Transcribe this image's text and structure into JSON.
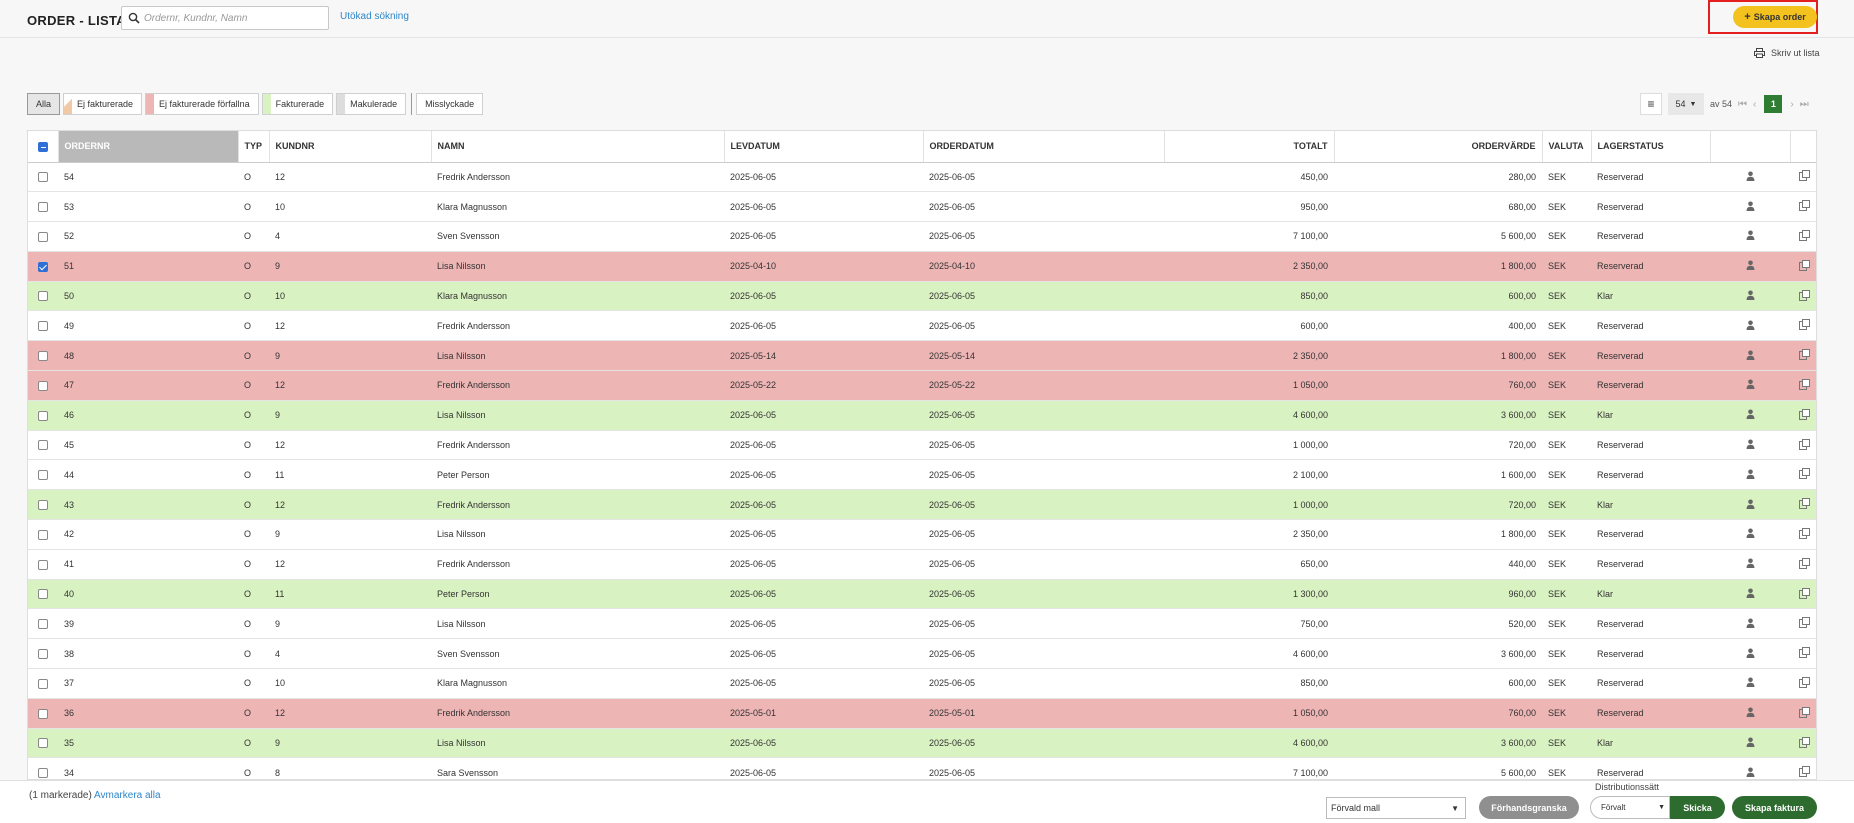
{
  "header": {
    "title": "ORDER - LISTA",
    "search_placeholder": "Ordernr, Kundnr, Namn",
    "advanced_search": "Utökad sökning",
    "create_order": "Skapa order",
    "print_list": "Skriv ut lista"
  },
  "filters": [
    {
      "label": "Alla",
      "active": true,
      "color": ""
    },
    {
      "label": "Ej fakturerade",
      "active": false,
      "color": "#f2c9a6"
    },
    {
      "label": "Ej fakturerade förfallna",
      "active": false,
      "color": "#eeb5b5"
    },
    {
      "label": "Fakturerade",
      "active": false,
      "color": "#d9f2c2"
    },
    {
      "label": "Makulerade",
      "active": false,
      "color": "#dddddd"
    },
    {
      "label": "Misslyckade",
      "active": false,
      "color": ""
    }
  ],
  "pager": {
    "per_page": "54",
    "of_label": "av 54",
    "current_page": "1"
  },
  "columns": [
    "ORDERNR",
    "TYP",
    "KUNDNR",
    "NAMN",
    "LEVDATUM",
    "ORDERDATUM",
    "TOTALT",
    "ORDERVÄRDE",
    "VALUTA",
    "LAGERSTATUS"
  ],
  "rows": [
    {
      "ordernr": "54",
      "typ": "O",
      "kundnr": "12",
      "namn": "Fredrik Andersson",
      "levdatum": "2025-06-05",
      "orderdatum": "2025-06-05",
      "totalt": "450,00",
      "ordervarde": "280,00",
      "valuta": "SEK",
      "lagerstatus": "Reserverad",
      "state": "normal",
      "checked": false
    },
    {
      "ordernr": "53",
      "typ": "O",
      "kundnr": "10",
      "namn": "Klara Magnusson",
      "levdatum": "2025-06-05",
      "orderdatum": "2025-06-05",
      "totalt": "950,00",
      "ordervarde": "680,00",
      "valuta": "SEK",
      "lagerstatus": "Reserverad",
      "state": "normal",
      "checked": false
    },
    {
      "ordernr": "52",
      "typ": "O",
      "kundnr": "4",
      "namn": "Sven Svensson",
      "levdatum": "2025-06-05",
      "orderdatum": "2025-06-05",
      "totalt": "7 100,00",
      "ordervarde": "5 600,00",
      "valuta": "SEK",
      "lagerstatus": "Reserverad",
      "state": "normal",
      "checked": false
    },
    {
      "ordernr": "51",
      "typ": "O",
      "kundnr": "9",
      "namn": "Lisa Nilsson",
      "levdatum": "2025-04-10",
      "orderdatum": "2025-04-10",
      "totalt": "2 350,00",
      "ordervarde": "1 800,00",
      "valuta": "SEK",
      "lagerstatus": "Reserverad",
      "state": "overdue",
      "checked": true
    },
    {
      "ordernr": "50",
      "typ": "O",
      "kundnr": "10",
      "namn": "Klara Magnusson",
      "levdatum": "2025-06-05",
      "orderdatum": "2025-06-05",
      "totalt": "850,00",
      "ordervarde": "600,00",
      "valuta": "SEK",
      "lagerstatus": "Klar",
      "state": "invoiced",
      "checked": false
    },
    {
      "ordernr": "49",
      "typ": "O",
      "kundnr": "12",
      "namn": "Fredrik Andersson",
      "levdatum": "2025-06-05",
      "orderdatum": "2025-06-05",
      "totalt": "600,00",
      "ordervarde": "400,00",
      "valuta": "SEK",
      "lagerstatus": "Reserverad",
      "state": "normal",
      "checked": false
    },
    {
      "ordernr": "48",
      "typ": "O",
      "kundnr": "9",
      "namn": "Lisa Nilsson",
      "levdatum": "2025-05-14",
      "orderdatum": "2025-05-14",
      "totalt": "2 350,00",
      "ordervarde": "1 800,00",
      "valuta": "SEK",
      "lagerstatus": "Reserverad",
      "state": "overdue",
      "checked": false
    },
    {
      "ordernr": "47",
      "typ": "O",
      "kundnr": "12",
      "namn": "Fredrik Andersson",
      "levdatum": "2025-05-22",
      "orderdatum": "2025-05-22",
      "totalt": "1 050,00",
      "ordervarde": "760,00",
      "valuta": "SEK",
      "lagerstatus": "Reserverad",
      "state": "overdue",
      "checked": false
    },
    {
      "ordernr": "46",
      "typ": "O",
      "kundnr": "9",
      "namn": "Lisa Nilsson",
      "levdatum": "2025-06-05",
      "orderdatum": "2025-06-05",
      "totalt": "4 600,00",
      "ordervarde": "3 600,00",
      "valuta": "SEK",
      "lagerstatus": "Klar",
      "state": "invoiced",
      "checked": false
    },
    {
      "ordernr": "45",
      "typ": "O",
      "kundnr": "12",
      "namn": "Fredrik Andersson",
      "levdatum": "2025-06-05",
      "orderdatum": "2025-06-05",
      "totalt": "1 000,00",
      "ordervarde": "720,00",
      "valuta": "SEK",
      "lagerstatus": "Reserverad",
      "state": "normal",
      "checked": false
    },
    {
      "ordernr": "44",
      "typ": "O",
      "kundnr": "11",
      "namn": "Peter Person",
      "levdatum": "2025-06-05",
      "orderdatum": "2025-06-05",
      "totalt": "2 100,00",
      "ordervarde": "1 600,00",
      "valuta": "SEK",
      "lagerstatus": "Reserverad",
      "state": "normal",
      "checked": false
    },
    {
      "ordernr": "43",
      "typ": "O",
      "kundnr": "12",
      "namn": "Fredrik Andersson",
      "levdatum": "2025-06-05",
      "orderdatum": "2025-06-05",
      "totalt": "1 000,00",
      "ordervarde": "720,00",
      "valuta": "SEK",
      "lagerstatus": "Klar",
      "state": "invoiced",
      "checked": false
    },
    {
      "ordernr": "42",
      "typ": "O",
      "kundnr": "9",
      "namn": "Lisa Nilsson",
      "levdatum": "2025-06-05",
      "orderdatum": "2025-06-05",
      "totalt": "2 350,00",
      "ordervarde": "1 800,00",
      "valuta": "SEK",
      "lagerstatus": "Reserverad",
      "state": "normal",
      "checked": false
    },
    {
      "ordernr": "41",
      "typ": "O",
      "kundnr": "12",
      "namn": "Fredrik Andersson",
      "levdatum": "2025-06-05",
      "orderdatum": "2025-06-05",
      "totalt": "650,00",
      "ordervarde": "440,00",
      "valuta": "SEK",
      "lagerstatus": "Reserverad",
      "state": "normal",
      "checked": false
    },
    {
      "ordernr": "40",
      "typ": "O",
      "kundnr": "11",
      "namn": "Peter Person",
      "levdatum": "2025-06-05",
      "orderdatum": "2025-06-05",
      "totalt": "1 300,00",
      "ordervarde": "960,00",
      "valuta": "SEK",
      "lagerstatus": "Klar",
      "state": "invoiced",
      "checked": false
    },
    {
      "ordernr": "39",
      "typ": "O",
      "kundnr": "9",
      "namn": "Lisa Nilsson",
      "levdatum": "2025-06-05",
      "orderdatum": "2025-06-05",
      "totalt": "750,00",
      "ordervarde": "520,00",
      "valuta": "SEK",
      "lagerstatus": "Reserverad",
      "state": "normal",
      "checked": false
    },
    {
      "ordernr": "38",
      "typ": "O",
      "kundnr": "4",
      "namn": "Sven Svensson",
      "levdatum": "2025-06-05",
      "orderdatum": "2025-06-05",
      "totalt": "4 600,00",
      "ordervarde": "3 600,00",
      "valuta": "SEK",
      "lagerstatus": "Reserverad",
      "state": "normal",
      "checked": false
    },
    {
      "ordernr": "37",
      "typ": "O",
      "kundnr": "10",
      "namn": "Klara Magnusson",
      "levdatum": "2025-06-05",
      "orderdatum": "2025-06-05",
      "totalt": "850,00",
      "ordervarde": "600,00",
      "valuta": "SEK",
      "lagerstatus": "Reserverad",
      "state": "normal",
      "checked": false
    },
    {
      "ordernr": "36",
      "typ": "O",
      "kundnr": "12",
      "namn": "Fredrik Andersson",
      "levdatum": "2025-05-01",
      "orderdatum": "2025-05-01",
      "totalt": "1 050,00",
      "ordervarde": "760,00",
      "valuta": "SEK",
      "lagerstatus": "Reserverad",
      "state": "overdue",
      "checked": false
    },
    {
      "ordernr": "35",
      "typ": "O",
      "kundnr": "9",
      "namn": "Lisa Nilsson",
      "levdatum": "2025-06-05",
      "orderdatum": "2025-06-05",
      "totalt": "4 600,00",
      "ordervarde": "3 600,00",
      "valuta": "SEK",
      "lagerstatus": "Klar",
      "state": "invoiced",
      "checked": false
    },
    {
      "ordernr": "34",
      "typ": "O",
      "kundnr": "8",
      "namn": "Sara Svensson",
      "levdatum": "2025-06-05",
      "orderdatum": "2025-06-05",
      "totalt": "7 100,00",
      "ordervarde": "5 600,00",
      "valuta": "SEK",
      "lagerstatus": "Reserverad",
      "state": "normal",
      "checked": false
    }
  ],
  "footer": {
    "marked_count": "(1 markerade)",
    "unmark_all": "Avmarkera alla",
    "template_select": "Förvald mall",
    "preview": "Förhandsgranska",
    "distribution_label": "Distributionssätt",
    "distribution_value": "Förvalt",
    "send": "Skicka",
    "create_invoice": "Skapa faktura"
  },
  "icons": {
    "search": "search-icon",
    "print": "printer-icon",
    "plus": "plus-icon",
    "user": "user-icon",
    "copy": "copy-icon",
    "menu": "menu-icon"
  }
}
